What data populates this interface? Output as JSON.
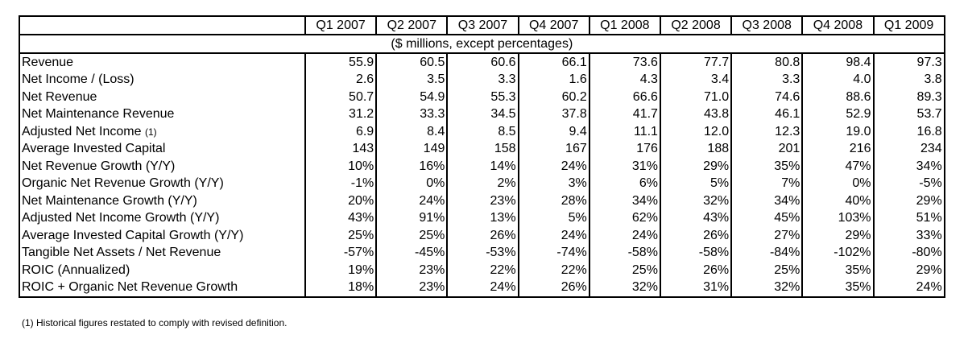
{
  "table": {
    "columns": [
      "Q1 2007",
      "Q2 2007",
      "Q3 2007",
      "Q4 2007",
      "Q1 2008",
      "Q2 2008",
      "Q3 2008",
      "Q4 2008",
      "Q1 2009"
    ],
    "units_note": "($ millions, except percentages)",
    "rows": [
      {
        "label": "Revenue",
        "note": "",
        "values": [
          "55.9",
          "60.5",
          "60.6",
          "66.1",
          "73.6",
          "77.7",
          "80.8",
          "98.4",
          "97.3"
        ]
      },
      {
        "label": "Net Income / (Loss)",
        "note": "",
        "values": [
          "2.6",
          "3.5",
          "3.3",
          "1.6",
          "4.3",
          "3.4",
          "3.3",
          "4.0",
          "3.8"
        ]
      },
      {
        "label": "Net Revenue",
        "note": "",
        "values": [
          "50.7",
          "54.9",
          "55.3",
          "60.2",
          "66.6",
          "71.0",
          "74.6",
          "88.6",
          "89.3"
        ]
      },
      {
        "label": "Net Maintenance Revenue",
        "note": "",
        "values": [
          "31.2",
          "33.3",
          "34.5",
          "37.8",
          "41.7",
          "43.8",
          "46.1",
          "52.9",
          "53.7"
        ]
      },
      {
        "label": "Adjusted Net Income ",
        "note": "(1)",
        "values": [
          "6.9",
          "8.4",
          "8.5",
          "9.4",
          "11.1",
          "12.0",
          "12.3",
          "19.0",
          "16.8"
        ]
      },
      {
        "label": "Average Invested Capital",
        "note": "",
        "values": [
          "143",
          "149",
          "158",
          "167",
          "176",
          "188",
          "201",
          "216",
          "234"
        ]
      },
      {
        "label": "Net Revenue Growth (Y/Y)",
        "note": "",
        "values": [
          "10%",
          "16%",
          "14%",
          "24%",
          "31%",
          "29%",
          "35%",
          "47%",
          "34%"
        ]
      },
      {
        "label": "Organic Net Revenue Growth (Y/Y)",
        "note": "",
        "values": [
          "-1%",
          "0%",
          "2%",
          "3%",
          "6%",
          "5%",
          "7%",
          "0%",
          "-5%"
        ]
      },
      {
        "label": "Net Maintenance Growth (Y/Y)",
        "note": "",
        "values": [
          "20%",
          "24%",
          "23%",
          "28%",
          "34%",
          "32%",
          "34%",
          "40%",
          "29%"
        ]
      },
      {
        "label": "Adjusted Net Income Growth (Y/Y)",
        "note": "",
        "values": [
          "43%",
          "91%",
          "13%",
          "5%",
          "62%",
          "43%",
          "45%",
          "103%",
          "51%"
        ]
      },
      {
        "label": "Average Invested Capital Growth (Y/Y)",
        "note": "",
        "values": [
          "25%",
          "25%",
          "26%",
          "24%",
          "24%",
          "26%",
          "27%",
          "29%",
          "33%"
        ]
      },
      {
        "label": "Tangible Net Assets / Net Revenue",
        "note": "",
        "values": [
          "-57%",
          "-45%",
          "-53%",
          "-74%",
          "-58%",
          "-58%",
          "-84%",
          "-102%",
          "-80%"
        ]
      },
      {
        "label": "ROIC (Annualized)",
        "note": "",
        "values": [
          "19%",
          "23%",
          "22%",
          "22%",
          "25%",
          "26%",
          "25%",
          "35%",
          "29%"
        ]
      },
      {
        "label": "ROIC + Organic Net Revenue Growth",
        "note": "",
        "values": [
          "18%",
          "23%",
          "24%",
          "26%",
          "32%",
          "31%",
          "32%",
          "35%",
          "24%"
        ]
      }
    ]
  },
  "footnote": "(1) Historical figures restated to comply with revised definition."
}
